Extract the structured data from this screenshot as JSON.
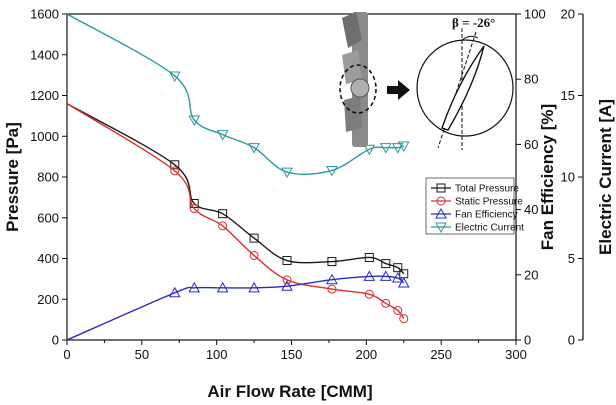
{
  "chart_data": {
    "type": "line",
    "xlabel": "Air Flow Rate [CMM]",
    "xlim": [
      0,
      300
    ],
    "xticks": [
      "0",
      "50",
      "100",
      "150",
      "200",
      "250",
      "300"
    ],
    "axes": {
      "left": {
        "label": "Pressure [Pa]",
        "lim": [
          0,
          1600
        ],
        "ticks": [
          "0",
          "200",
          "400",
          "600",
          "800",
          "1000",
          "1200",
          "1400",
          "1600"
        ]
      },
      "right1": {
        "label": "Fan Efficiency [%]",
        "lim": [
          0,
          100
        ],
        "ticks": [
          "0",
          "20",
          "40",
          "60",
          "80",
          "100"
        ]
      },
      "right2": {
        "label": "Electric Current [A]",
        "lim": [
          0,
          20
        ],
        "ticks": [
          "0",
          "5",
          "10",
          "15",
          "20"
        ]
      }
    },
    "series": [
      {
        "name": "Total Pressure",
        "axis": "left",
        "marker": "square",
        "color": "#1a1a1a",
        "x": [
          0,
          72,
          85,
          104,
          125,
          147,
          177,
          202,
          213,
          221,
          225
        ],
        "y": [
          1160,
          860,
          670,
          620,
          500,
          390,
          385,
          405,
          375,
          355,
          325
        ]
      },
      {
        "name": "Static Pressure",
        "axis": "left",
        "marker": "circle",
        "color": "#d93030",
        "x": [
          0,
          72,
          85,
          104,
          125,
          147,
          177,
          202,
          213,
          221,
          225
        ],
        "y": [
          1160,
          830,
          645,
          560,
          415,
          295,
          250,
          225,
          180,
          145,
          105
        ]
      },
      {
        "name": "Fan Efficiency",
        "axis": "right1",
        "marker": "triangle-up",
        "color": "#2b2bc8",
        "x": [
          0,
          72,
          85,
          104,
          125,
          147,
          177,
          202,
          213,
          221,
          225
        ],
        "y": [
          0,
          14.5,
          16,
          16,
          16,
          16.5,
          18.5,
          19.5,
          19.5,
          19,
          17.5
        ]
      },
      {
        "name": "Electric Current",
        "axis": "right2",
        "marker": "triangle-down",
        "color": "#2a9aa0",
        "x": [
          0,
          72,
          85,
          104,
          125,
          147,
          177,
          202,
          213,
          221,
          225
        ],
        "y": [
          20,
          16.2,
          13.5,
          12.6,
          11.8,
          10.3,
          10.4,
          11.7,
          11.8,
          11.8,
          11.9
        ]
      }
    ],
    "legend_position": "right-middle",
    "inset": {
      "beta_label": "β = -26°"
    }
  }
}
